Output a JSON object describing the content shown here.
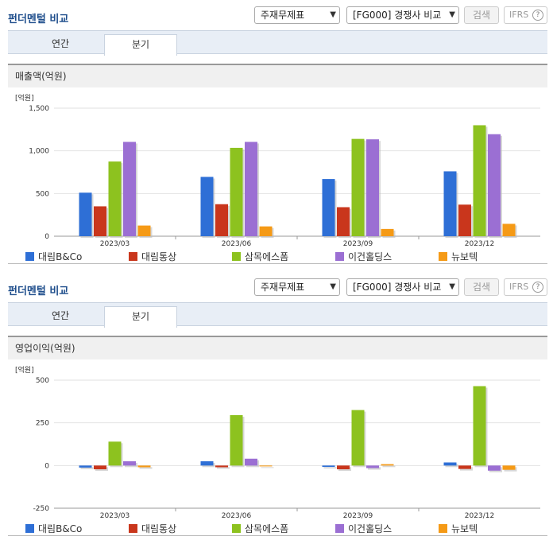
{
  "sections": [
    {
      "title": "펀더멘털 비교",
      "dropdown1": "주재무제표",
      "dropdown2": "[FG000] 경쟁사 비교",
      "search_label": "검색",
      "ifrs_label": "IFRS",
      "tabs": [
        "연간",
        "분기"
      ],
      "selected_tab": "분기",
      "panel_title": "매출액(억원)"
    },
    {
      "title": "펀더멘털 비교",
      "dropdown1": "주재무제표",
      "dropdown2": "[FG000] 경쟁사 비교",
      "search_label": "검색",
      "ifrs_label": "IFRS",
      "tabs": [
        "연간",
        "분기"
      ],
      "selected_tab": "분기",
      "panel_title": "영업이익(억원)"
    }
  ],
  "colors": [
    "#2e6fd6",
    "#c9361c",
    "#8dc21f",
    "#9b6fd3",
    "#f59a16"
  ],
  "chart_data": [
    {
      "type": "bar",
      "unit_label": "[억원]",
      "categories": [
        "2023/03",
        "2023/06",
        "2023/09",
        "2023/12"
      ],
      "ylim": [
        0,
        1500
      ],
      "yticks": [
        0,
        500,
        1000,
        1500
      ],
      "ytick_labels": [
        "0",
        "500",
        "1,000",
        "1,500"
      ],
      "legend_position": "bottom",
      "series": [
        {
          "name": "대림B&Co",
          "values": [
            510,
            695,
            670,
            760
          ]
        },
        {
          "name": "대림통상",
          "values": [
            350,
            375,
            340,
            370
          ]
        },
        {
          "name": "삼목에스폼",
          "values": [
            875,
            1035,
            1140,
            1300
          ]
        },
        {
          "name": "이건홀딩스",
          "values": [
            1105,
            1105,
            1135,
            1195
          ]
        },
        {
          "name": "뉴보텍",
          "values": [
            125,
            115,
            85,
            145
          ]
        }
      ]
    },
    {
      "type": "bar",
      "unit_label": "[억원]",
      "categories": [
        "2023/03",
        "2023/06",
        "2023/09",
        "2023/12"
      ],
      "ylim": [
        -250,
        500
      ],
      "yticks": [
        -250,
        0,
        250,
        500
      ],
      "ytick_labels": [
        "-250",
        "0",
        "250",
        "500"
      ],
      "legend_position": "bottom",
      "series": [
        {
          "name": "대림B&Co",
          "values": [
            -12,
            25,
            -8,
            18
          ]
        },
        {
          "name": "대림통상",
          "values": [
            -22,
            -10,
            -22,
            -20
          ]
        },
        {
          "name": "삼목에스폼",
          "values": [
            140,
            295,
            325,
            465
          ]
        },
        {
          "name": "이건홀딩스",
          "values": [
            25,
            40,
            -15,
            -30
          ]
        },
        {
          "name": "뉴보텍",
          "values": [
            -10,
            -5,
            8,
            -25
          ]
        }
      ]
    }
  ]
}
